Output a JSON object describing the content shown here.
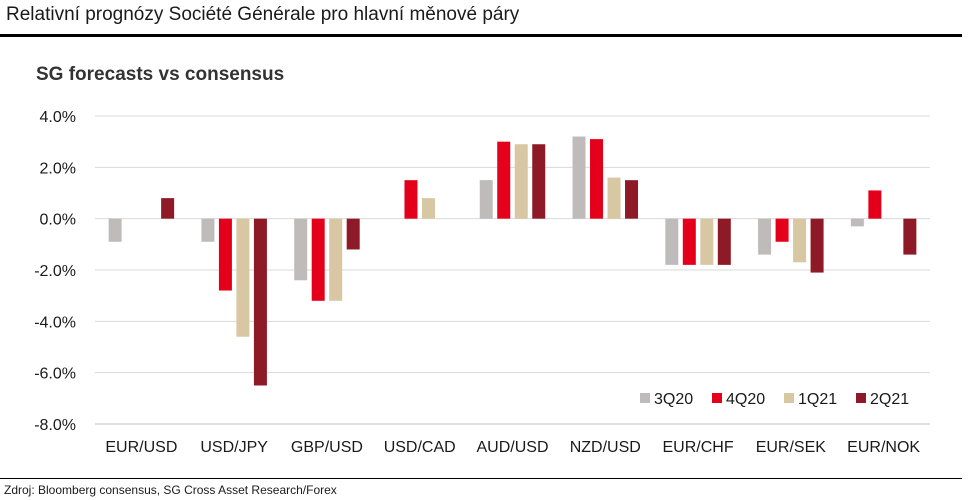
{
  "header": {
    "title": "Relativní prognózy Société Générale pro hlavní měnové páry"
  },
  "footer": {
    "source": "Zdroj: Bloomberg consensus, SG Cross Asset Research/Forex"
  },
  "chart_data": {
    "type": "bar",
    "title": "SG forecasts vs consensus",
    "xlabel": "",
    "ylabel": "",
    "ylim": [
      -8.0,
      4.0
    ],
    "yticks": [
      4.0,
      2.0,
      0.0,
      -2.0,
      -4.0,
      -6.0,
      -8.0
    ],
    "ytick_labels": [
      "4.0%",
      "2.0%",
      "0.0%",
      "-2.0%",
      "-4.0%",
      "-6.0%",
      "-8.0%"
    ],
    "grid": true,
    "legend_position": "bottom-right",
    "categories": [
      "EUR/USD",
      "USD/JPY",
      "GBP/USD",
      "USD/CAD",
      "AUD/USD",
      "NZD/USD",
      "EUR/CHF",
      "EUR/SEK",
      "EUR/NOK"
    ],
    "series": [
      {
        "name": "3Q20",
        "color": "#bfbbbb",
        "values": [
          -0.9,
          -0.9,
          -2.4,
          0.0,
          1.5,
          3.2,
          -1.8,
          -1.4,
          -0.3
        ]
      },
      {
        "name": "4Q20",
        "color": "#e4001b",
        "values": [
          0.0,
          -2.8,
          -3.2,
          1.5,
          3.0,
          3.1,
          -1.8,
          -0.9,
          1.1
        ]
      },
      {
        "name": "1Q21",
        "color": "#d8c7a3",
        "values": [
          0.0,
          -4.6,
          -3.2,
          0.8,
          2.9,
          1.6,
          -1.8,
          -1.7,
          0.0
        ]
      },
      {
        "name": "2Q21",
        "color": "#8d1a26",
        "values": [
          0.8,
          -6.5,
          -1.2,
          0.0,
          2.9,
          1.5,
          -1.8,
          -2.1,
          -1.4
        ]
      }
    ]
  }
}
